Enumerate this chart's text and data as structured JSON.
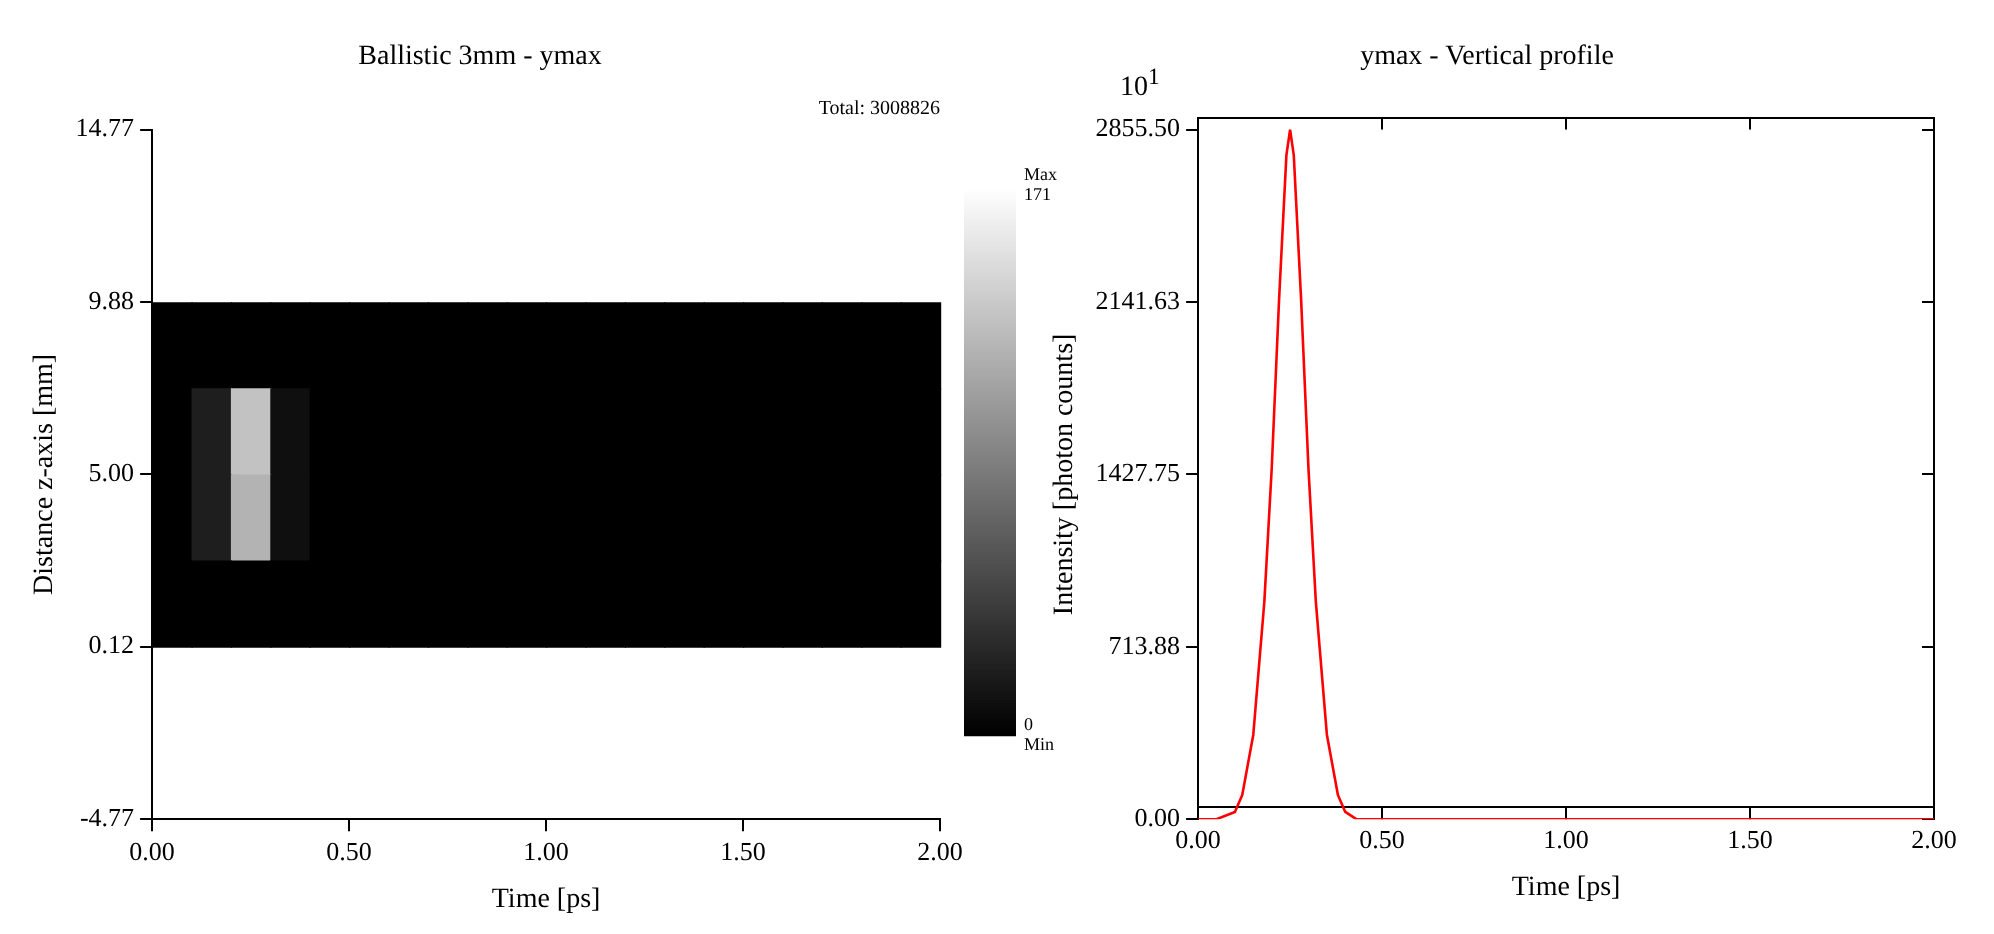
{
  "chart_data": [
    {
      "type": "scatter",
      "title": "Ballistic 3mm - ymax",
      "xlabel": "Time [ps]",
      "ylabel": "Distance z-axis [mm]",
      "marker": "square",
      "annotations": [
        "Total: 3008826"
      ],
      "x": [
        0.05,
        0.15,
        0.25,
        0.35,
        0.45,
        0.55,
        0.65,
        0.75,
        0.85,
        0.95,
        1.05,
        1.15,
        1.25,
        1.35,
        1.45,
        1.55,
        1.65,
        1.75,
        1.85,
        1.95,
        0.05,
        0.15,
        0.25,
        0.35,
        0.45,
        0.55,
        0.65,
        0.75,
        0.85,
        0.95,
        1.05,
        1.15,
        1.25,
        1.35,
        1.45,
        1.55,
        1.65,
        1.75,
        1.85,
        1.95,
        0.05,
        0.15,
        0.25,
        0.35,
        0.45,
        0.55,
        0.65,
        0.75,
        0.85,
        0.95,
        1.05,
        1.15,
        1.25,
        1.35,
        1.45,
        1.55,
        1.65,
        1.75,
        1.85,
        1.95,
        0.05,
        0.15,
        0.25,
        0.35,
        0.45,
        0.55,
        0.65,
        0.75,
        0.85,
        0.95,
        1.05,
        1.15,
        1.25,
        1.35,
        1.45,
        1.55,
        1.65,
        1.75,
        1.85,
        1.95
      ],
      "values": [
        8.66,
        8.66,
        8.66,
        8.66,
        8.66,
        8.66,
        8.66,
        8.66,
        8.66,
        8.66,
        8.66,
        8.66,
        8.66,
        8.66,
        8.66,
        8.66,
        8.66,
        8.66,
        8.66,
        8.66,
        6.22,
        6.22,
        6.22,
        6.22,
        6.22,
        6.22,
        6.22,
        6.22,
        6.22,
        6.22,
        6.22,
        6.22,
        6.22,
        6.22,
        6.22,
        6.22,
        6.22,
        6.22,
        6.22,
        6.22,
        3.78,
        3.78,
        3.78,
        3.78,
        3.78,
        3.78,
        3.78,
        3.78,
        3.78,
        3.78,
        3.78,
        3.78,
        3.78,
        3.78,
        3.78,
        3.78,
        3.78,
        3.78,
        3.78,
        3.78,
        1.34,
        1.34,
        1.34,
        1.34,
        1.34,
        1.34,
        1.34,
        1.34,
        1.34,
        1.34,
        1.34,
        1.34,
        1.34,
        1.34,
        1.34,
        1.34,
        1.34,
        1.34,
        1.34,
        1.34
      ],
      "cvalues": [
        0,
        0,
        0,
        0,
        0,
        0,
        0,
        0,
        0,
        0,
        0,
        0,
        0,
        0,
        0,
        0,
        0,
        0,
        0,
        0,
        0,
        20,
        130,
        10,
        0,
        0,
        0,
        0,
        0,
        0,
        0,
        0,
        0,
        0,
        0,
        0,
        0,
        0,
        0,
        0,
        0,
        20,
        120,
        10,
        0,
        0,
        0,
        0,
        0,
        0,
        0,
        0,
        0,
        0,
        0,
        0,
        0,
        0,
        0,
        0,
        0,
        0,
        0,
        0,
        0,
        0,
        0,
        0,
        0,
        0,
        0,
        0,
        0,
        0,
        0,
        0,
        0,
        0,
        0,
        0
      ],
      "clim": [
        0,
        171
      ],
      "cticks": [
        {
          "value": 0,
          "label": "0 Min"
        },
        {
          "value": 171,
          "label": "Max 171"
        }
      ],
      "xlim": [
        0,
        2
      ],
      "xticks": [
        {
          "value": 0,
          "label": "0.00"
        },
        {
          "value": 0.5,
          "label": "0.50"
        },
        {
          "value": 1,
          "label": "1.00"
        },
        {
          "value": 1.5,
          "label": "1.50"
        },
        {
          "value": 2,
          "label": "2.00"
        }
      ],
      "ylim": [
        -4.77,
        14.77
      ],
      "yticks": [
        -4.77,
        0.12,
        {
          "value": 5,
          "label": "5.00"
        },
        9.88,
        14.77
      ]
    },
    {
      "type": "line",
      "title": "ymax - Vertical profile",
      "xlabel": "Time [ps]",
      "ylabel": "Intensity [photon counts]",
      "annotations": [
        "10$^{1}$"
      ],
      "x": [
        0,
        0.05,
        0.1,
        0.12,
        0.15,
        0.18,
        0.2,
        0.22,
        0.24,
        0.25,
        0.26,
        0.28,
        0.3,
        0.32,
        0.35,
        0.38,
        0.4,
        0.43,
        0.5,
        1,
        1.5,
        2
      ],
      "series": [
        {
          "color": "#ff0000",
          "values": [
            0,
            0,
            30,
            100,
            350,
            900,
            1450,
            2150,
            2750,
            2855.5,
            2750,
            2150,
            1450,
            900,
            350,
            100,
            30,
            0,
            0,
            0,
            0,
            0
          ]
        }
      ],
      "xlim": [
        0,
        2
      ],
      "xticks": [
        {
          "value": 0,
          "label": "0.00"
        },
        {
          "value": 0.5,
          "label": "0.50"
        },
        {
          "value": 1,
          "label": "1.00"
        },
        {
          "value": 1.5,
          "label": "1.50"
        },
        {
          "value": 2,
          "label": "2.00"
        }
      ],
      "ylim": [
        0,
        2855.5
      ],
      "yticks": [
        {
          "value": 0,
          "label": "0.00"
        },
        {
          "value": 713.88,
          "label": "713.88"
        },
        {
          "value": 1427.75,
          "label": "1427.75"
        },
        {
          "value": 2141.63,
          "label": "2141.63"
        },
        {
          "value": 2855.5,
          "label": "2855.50"
        }
      ],
      "grid": false,
      "legend": false,
      "marker": "none",
      "line_style": "solid"
    }
  ]
}
